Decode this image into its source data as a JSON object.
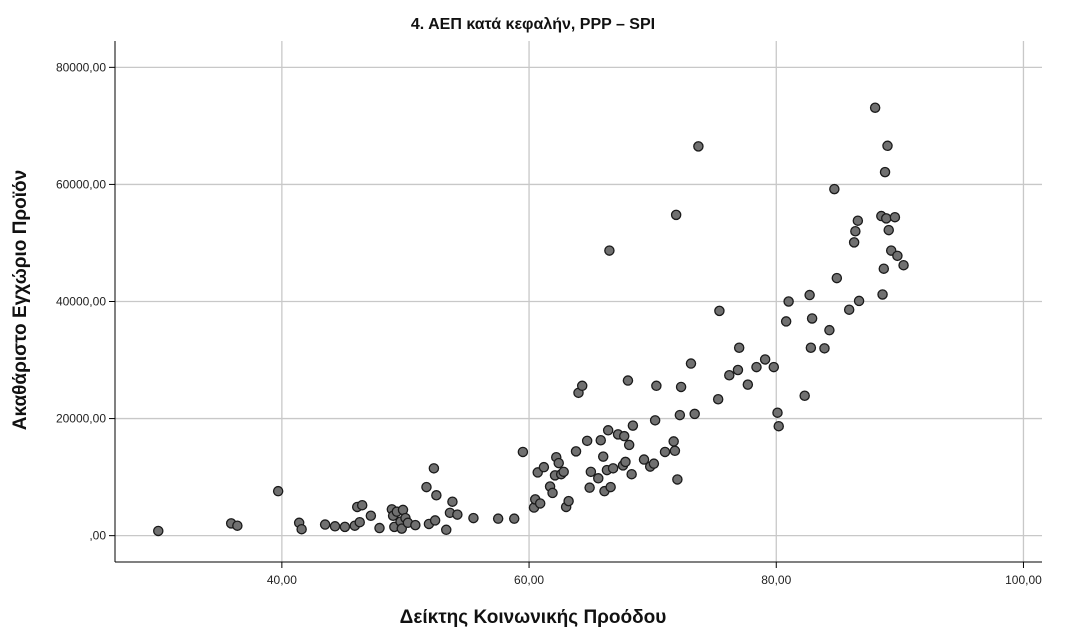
{
  "chart_data": {
    "type": "scatter",
    "title": "4. ΑΕΠ κατά κεφαλήν, PPP – SPI",
    "xlabel": "Δείκτης Κοινωνικής Προόδου",
    "ylabel": "Ακαθάριστο Εγχώριο Προϊόν",
    "xlim": [
      26.5,
      101.5
    ],
    "ylim": [
      -4500,
      84500
    ],
    "x_ticks": [
      40,
      60,
      80,
      100
    ],
    "x_tick_labels": [
      "40,00",
      "60,00",
      "80,00",
      "100,00"
    ],
    "y_ticks": [
      0,
      20000,
      40000,
      60000,
      80000
    ],
    "y_tick_labels": [
      ",00",
      "20000,00",
      "40000,00",
      "60000,00",
      "80000,00"
    ],
    "grid": true,
    "colors": {
      "point_fill": "#707070",
      "point_stroke": "#1a1a1a",
      "grid": "#c8c8c8",
      "axis": "#000000",
      "background": "#ffffff"
    },
    "points": [
      {
        "x": 30.0,
        "y": 800
      },
      {
        "x": 35.9,
        "y": 2100
      },
      {
        "x": 36.4,
        "y": 1700
      },
      {
        "x": 39.7,
        "y": 7600
      },
      {
        "x": 41.4,
        "y": 2200
      },
      {
        "x": 41.6,
        "y": 1100
      },
      {
        "x": 43.5,
        "y": 1900
      },
      {
        "x": 44.3,
        "y": 1600
      },
      {
        "x": 45.1,
        "y": 1500
      },
      {
        "x": 45.9,
        "y": 1700
      },
      {
        "x": 46.1,
        "y": 4900
      },
      {
        "x": 46.3,
        "y": 2300
      },
      {
        "x": 46.5,
        "y": 5200
      },
      {
        "x": 47.2,
        "y": 3400
      },
      {
        "x": 47.9,
        "y": 1300
      },
      {
        "x": 48.9,
        "y": 4500
      },
      {
        "x": 49.0,
        "y": 3400
      },
      {
        "x": 49.1,
        "y": 1500
      },
      {
        "x": 49.3,
        "y": 4100
      },
      {
        "x": 49.6,
        "y": 2400
      },
      {
        "x": 49.7,
        "y": 1200
      },
      {
        "x": 49.8,
        "y": 4400
      },
      {
        "x": 50.0,
        "y": 3000
      },
      {
        "x": 50.2,
        "y": 2200
      },
      {
        "x": 50.8,
        "y": 1800
      },
      {
        "x": 51.7,
        "y": 8300
      },
      {
        "x": 51.9,
        "y": 2000
      },
      {
        "x": 52.3,
        "y": 11500
      },
      {
        "x": 52.4,
        "y": 2600
      },
      {
        "x": 52.5,
        "y": 6900
      },
      {
        "x": 53.3,
        "y": 1000
      },
      {
        "x": 53.6,
        "y": 3900
      },
      {
        "x": 53.8,
        "y": 5800
      },
      {
        "x": 54.2,
        "y": 3600
      },
      {
        "x": 55.5,
        "y": 3000
      },
      {
        "x": 57.5,
        "y": 2900
      },
      {
        "x": 58.8,
        "y": 2900
      },
      {
        "x": 59.5,
        "y": 14300
      },
      {
        "x": 60.4,
        "y": 4800
      },
      {
        "x": 60.5,
        "y": 6200
      },
      {
        "x": 60.7,
        "y": 10800
      },
      {
        "x": 60.9,
        "y": 5500
      },
      {
        "x": 61.2,
        "y": 11700
      },
      {
        "x": 61.7,
        "y": 8400
      },
      {
        "x": 61.9,
        "y": 7300
      },
      {
        "x": 62.1,
        "y": 10300
      },
      {
        "x": 62.2,
        "y": 13400
      },
      {
        "x": 62.4,
        "y": 12400
      },
      {
        "x": 62.6,
        "y": 10500
      },
      {
        "x": 62.8,
        "y": 10900
      },
      {
        "x": 63.0,
        "y": 4900
      },
      {
        "x": 63.2,
        "y": 5900
      },
      {
        "x": 63.8,
        "y": 14400
      },
      {
        "x": 64.0,
        "y": 24400
      },
      {
        "x": 64.3,
        "y": 25600
      },
      {
        "x": 64.7,
        "y": 16200
      },
      {
        "x": 64.9,
        "y": 8200
      },
      {
        "x": 65.0,
        "y": 10900
      },
      {
        "x": 65.6,
        "y": 9800
      },
      {
        "x": 65.8,
        "y": 16300
      },
      {
        "x": 66.0,
        "y": 13500
      },
      {
        "x": 66.1,
        "y": 7600
      },
      {
        "x": 66.3,
        "y": 11200
      },
      {
        "x": 66.4,
        "y": 18000
      },
      {
        "x": 66.5,
        "y": 48700
      },
      {
        "x": 66.6,
        "y": 8300
      },
      {
        "x": 66.8,
        "y": 11500
      },
      {
        "x": 67.2,
        "y": 17300
      },
      {
        "x": 67.6,
        "y": 12000
      },
      {
        "x": 67.7,
        "y": 17000
      },
      {
        "x": 67.8,
        "y": 12600
      },
      {
        "x": 68.0,
        "y": 26500
      },
      {
        "x": 68.1,
        "y": 15500
      },
      {
        "x": 68.3,
        "y": 10500
      },
      {
        "x": 68.4,
        "y": 18800
      },
      {
        "x": 69.3,
        "y": 13000
      },
      {
        "x": 69.8,
        "y": 11800
      },
      {
        "x": 70.1,
        "y": 12300
      },
      {
        "x": 70.2,
        "y": 19700
      },
      {
        "x": 70.3,
        "y": 25600
      },
      {
        "x": 71.0,
        "y": 14300
      },
      {
        "x": 71.7,
        "y": 16100
      },
      {
        "x": 71.8,
        "y": 14500
      },
      {
        "x": 71.9,
        "y": 54800
      },
      {
        "x": 72.0,
        "y": 9600
      },
      {
        "x": 72.2,
        "y": 20600
      },
      {
        "x": 72.3,
        "y": 25400
      },
      {
        "x": 73.1,
        "y": 29400
      },
      {
        "x": 73.4,
        "y": 20800
      },
      {
        "x": 73.7,
        "y": 66500
      },
      {
        "x": 75.3,
        "y": 23300
      },
      {
        "x": 75.4,
        "y": 38400
      },
      {
        "x": 76.2,
        "y": 27400
      },
      {
        "x": 76.9,
        "y": 28300
      },
      {
        "x": 77.0,
        "y": 32100
      },
      {
        "x": 77.7,
        "y": 25800
      },
      {
        "x": 78.4,
        "y": 28800
      },
      {
        "x": 79.1,
        "y": 30100
      },
      {
        "x": 79.8,
        "y": 28800
      },
      {
        "x": 80.1,
        "y": 21000
      },
      {
        "x": 80.2,
        "y": 18700
      },
      {
        "x": 80.8,
        "y": 36600
      },
      {
        "x": 81.0,
        "y": 40000
      },
      {
        "x": 82.3,
        "y": 23900
      },
      {
        "x": 82.7,
        "y": 41100
      },
      {
        "x": 82.8,
        "y": 32100
      },
      {
        "x": 82.9,
        "y": 37100
      },
      {
        "x": 83.9,
        "y": 32000
      },
      {
        "x": 84.3,
        "y": 35100
      },
      {
        "x": 84.7,
        "y": 59200
      },
      {
        "x": 84.9,
        "y": 44000
      },
      {
        "x": 85.9,
        "y": 38600
      },
      {
        "x": 86.3,
        "y": 50100
      },
      {
        "x": 86.4,
        "y": 52000
      },
      {
        "x": 86.6,
        "y": 53800
      },
      {
        "x": 86.7,
        "y": 40100
      },
      {
        "x": 88.0,
        "y": 73100
      },
      {
        "x": 88.5,
        "y": 54600
      },
      {
        "x": 88.6,
        "y": 41200
      },
      {
        "x": 88.7,
        "y": 45600
      },
      {
        "x": 88.8,
        "y": 62100
      },
      {
        "x": 88.9,
        "y": 54200
      },
      {
        "x": 89.0,
        "y": 66600
      },
      {
        "x": 89.1,
        "y": 52200
      },
      {
        "x": 89.3,
        "y": 48700
      },
      {
        "x": 89.6,
        "y": 54400
      },
      {
        "x": 89.8,
        "y": 47800
      },
      {
        "x": 90.3,
        "y": 46200
      }
    ]
  }
}
